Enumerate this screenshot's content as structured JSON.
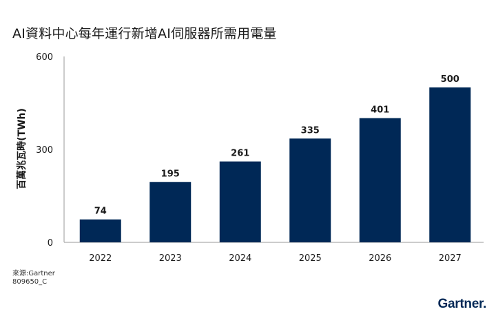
{
  "chart_data": {
    "type": "bar",
    "title": "AI資料中心每年運行新增AI伺服器所需用電量",
    "ylabel": "百萬兆瓦時(TWh)",
    "xlabel": "",
    "categories": [
      "2022",
      "2023",
      "2024",
      "2025",
      "2026",
      "2027"
    ],
    "values": [
      74,
      195,
      261,
      335,
      401,
      500
    ],
    "ylim": [
      0,
      600
    ],
    "yticks": [
      0,
      300,
      600
    ],
    "bar_color": "#002856",
    "grid": false,
    "legend": "none"
  },
  "footer": {
    "source": "來源:Gartner",
    "code": "809650_C"
  },
  "brand": {
    "name": "Gartner",
    "dot": ".",
    "color": "#002856"
  }
}
